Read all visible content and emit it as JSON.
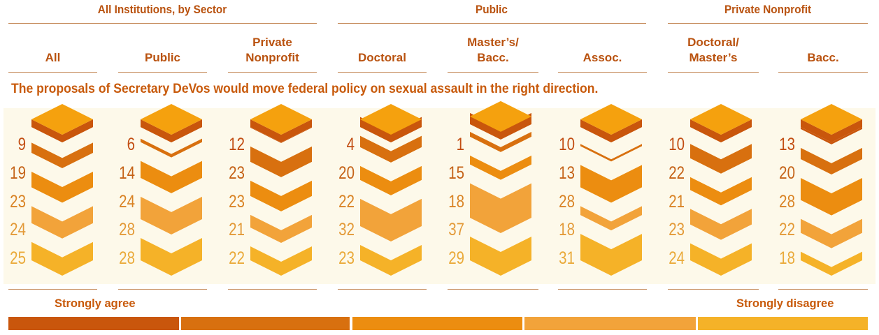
{
  "groups": [
    {
      "title": "All Institutions, by Sector"
    },
    {
      "title": "Public"
    },
    {
      "title": "Private Nonprofit"
    }
  ],
  "columns": [
    {
      "label": "All"
    },
    {
      "label": "Public"
    },
    {
      "label": "Private\nNonprofit"
    },
    {
      "label": "Doctoral"
    },
    {
      "label": "Master’s/\nBacc."
    },
    {
      "label": "Assoc."
    },
    {
      "label": "Doctoral/\nMaster’s"
    },
    {
      "label": "Bacc."
    }
  ],
  "question": "The proposals of Secretary DeVos would move federal policy on sexual assault in the right direction.",
  "legend": {
    "left_label": "Strongly agree",
    "right_label": "Strongly disagree",
    "colors": [
      "#c9560c",
      "#d8700f",
      "#ec8d10",
      "#f2a33a",
      "#f5b228"
    ]
  },
  "colors": {
    "top": "#f5a10e",
    "top_side": "#c9560c",
    "text": [
      "#c24d12",
      "#c56318",
      "#d98324",
      "#e39a38",
      "#eaaa3a"
    ]
  },
  "chart_data": {
    "type": "bar",
    "categories": [
      "All",
      "Public",
      "Private Nonprofit",
      "Doctoral",
      "Master’s/Bacc.",
      "Assoc.",
      "Doctoral/Master’s",
      "Bacc."
    ],
    "series": [
      {
        "name": "Strongly agree",
        "values": [
          9,
          6,
          12,
          4,
          1,
          10,
          10,
          13
        ]
      },
      {
        "name": "",
        "values": [
          19,
          14,
          23,
          20,
          15,
          13,
          22,
          20
        ]
      },
      {
        "name": "",
        "values": [
          23,
          24,
          23,
          22,
          18,
          28,
          21,
          28
        ]
      },
      {
        "name": "",
        "values": [
          24,
          28,
          21,
          32,
          37,
          18,
          23,
          22
        ]
      },
      {
        "name": "Strongly disagree",
        "values": [
          25,
          28,
          22,
          23,
          29,
          31,
          24,
          18
        ]
      }
    ],
    "ylim": [
      0,
      100
    ],
    "legend": "bottom"
  }
}
